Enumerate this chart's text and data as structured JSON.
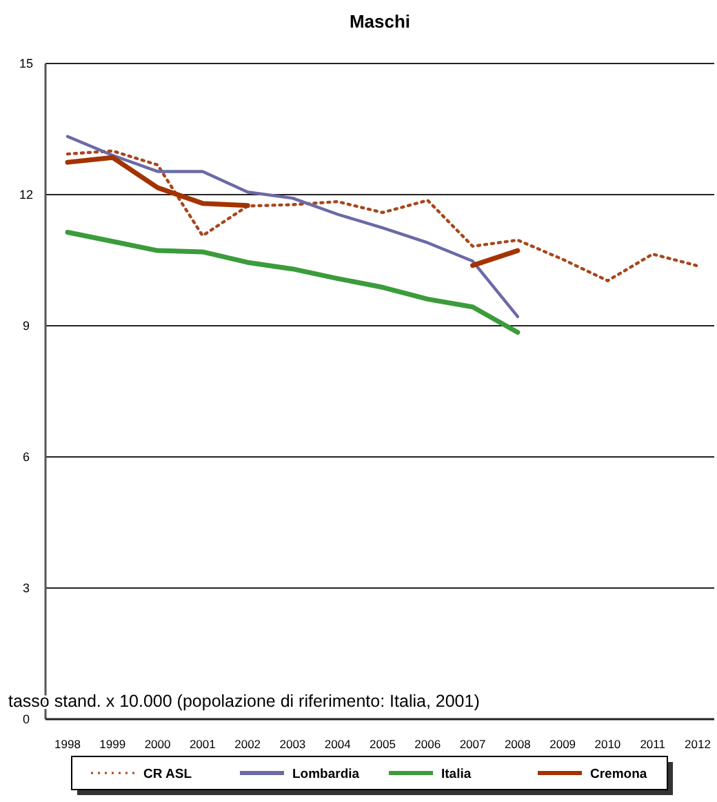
{
  "chart_data": {
    "type": "line",
    "title": "Maschi",
    "annotations": [
      "tasso stand. x 10.000 (popolazione di riferimento: Italia, 2001)"
    ],
    "categories": [
      "1998",
      "1999",
      "2000",
      "2001",
      "2002",
      "2003",
      "2004",
      "2005",
      "2006",
      "2007",
      "2008",
      "2009",
      "2010",
      "2011",
      "2012"
    ],
    "ylim": [
      0,
      15
    ],
    "yticks": [
      0,
      3,
      6,
      9,
      12,
      15
    ],
    "grid": "y",
    "legend": "bottom",
    "marker": "none",
    "series": [
      {
        "name": "CR ASL",
        "color": "#a8461c",
        "line_style": "dotted",
        "values": [
          12.93,
          13.0,
          12.68,
          11.06,
          11.74,
          11.77,
          11.84,
          11.59,
          11.87,
          10.82,
          10.96,
          10.52,
          10.03,
          10.64,
          10.37
        ]
      },
      {
        "name": "Lombardia",
        "color": "#6b69a6",
        "line_style": "solid",
        "values": [
          13.33,
          12.9,
          12.53,
          12.53,
          12.06,
          11.92,
          11.55,
          11.24,
          10.9,
          10.48,
          9.21,
          null,
          null,
          null,
          null
        ]
      },
      {
        "name": "Italia",
        "color": "#3a9c3a",
        "line_style": "solid",
        "values": [
          11.14,
          10.93,
          10.72,
          10.69,
          10.45,
          10.3,
          10.08,
          9.88,
          9.61,
          9.43,
          8.85,
          null,
          null,
          null,
          null
        ]
      },
      {
        "name": "Cremona",
        "color": "#a33300",
        "line_style": "solid",
        "values": [
          12.74,
          12.85,
          12.16,
          11.8,
          11.75,
          null,
          null,
          null,
          null,
          10.38,
          10.72,
          null,
          null,
          null,
          null
        ]
      }
    ]
  }
}
